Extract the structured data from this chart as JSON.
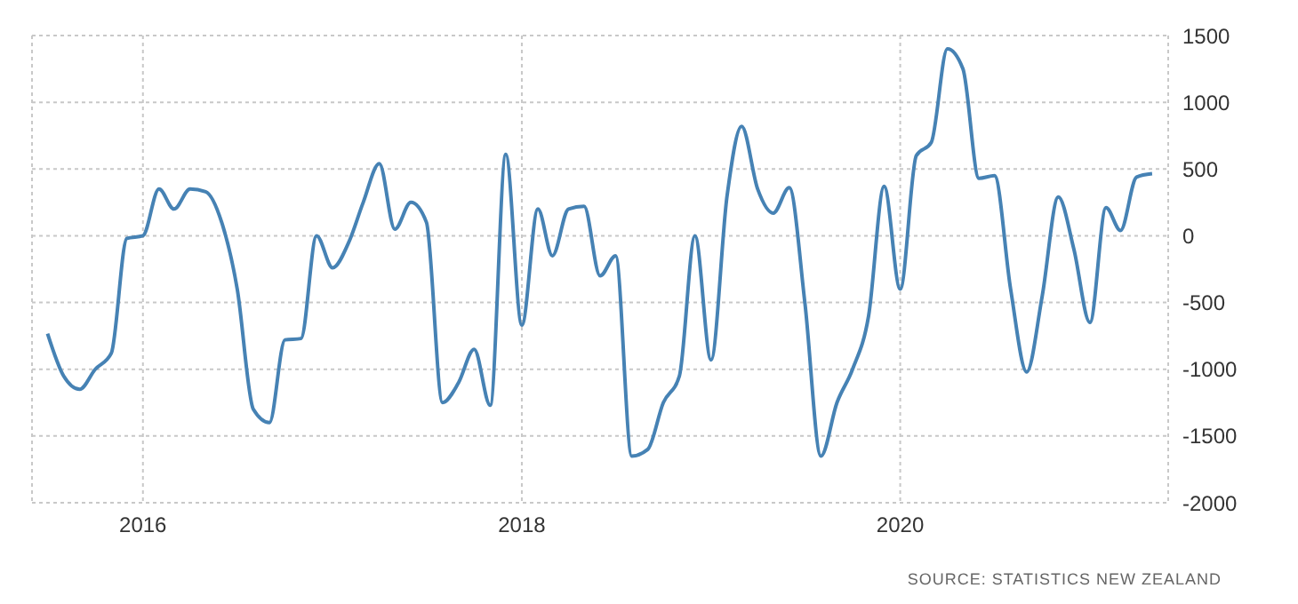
{
  "chart_data": {
    "type": "line",
    "x": [
      "2015-07",
      "2015-08",
      "2015-09",
      "2015-10",
      "2015-11",
      "2015-12",
      "2016-01",
      "2016-02",
      "2016-03",
      "2016-04",
      "2016-05",
      "2016-06",
      "2016-07",
      "2016-08",
      "2016-09",
      "2016-10",
      "2016-11",
      "2016-12",
      "2017-01",
      "2017-02",
      "2017-03",
      "2017-04",
      "2017-05",
      "2017-06",
      "2017-07",
      "2017-08",
      "2017-09",
      "2017-10",
      "2017-11",
      "2017-12",
      "2018-01",
      "2018-02",
      "2018-03",
      "2018-04",
      "2018-05",
      "2018-06",
      "2018-07",
      "2018-08",
      "2018-09",
      "2018-10",
      "2018-11",
      "2018-12",
      "2019-01",
      "2019-02",
      "2019-03",
      "2019-04",
      "2019-05",
      "2019-06",
      "2019-07",
      "2019-08",
      "2019-09",
      "2019-10",
      "2019-11",
      "2019-12",
      "2020-01",
      "2020-02",
      "2020-03",
      "2020-04",
      "2020-05",
      "2020-06",
      "2020-07",
      "2020-08",
      "2020-09",
      "2020-10",
      "2020-11",
      "2020-12",
      "2021-01",
      "2021-02",
      "2021-03",
      "2021-04",
      "2021-05"
    ],
    "series": [
      {
        "color": "#4682b4",
        "values": [
          -733,
          -1050,
          -1150,
          -1000,
          -880,
          -20,
          0,
          350,
          200,
          350,
          330,
          100,
          -400,
          -1300,
          -1400,
          -780,
          -770,
          0,
          -240,
          -50,
          250,
          540,
          50,
          250,
          100,
          -1250,
          -1100,
          -850,
          -1270,
          610,
          -670,
          200,
          -150,
          200,
          220,
          -300,
          -150,
          -1650,
          -1600,
          -1250,
          -1050,
          0,
          -930,
          300,
          820,
          350,
          170,
          360,
          -500,
          -1650,
          -1250,
          -1000,
          -600,
          370,
          -400,
          600,
          700,
          1400,
          1250,
          430,
          450,
          -400,
          -1020,
          -450,
          290,
          -100,
          -650,
          210,
          40,
          440,
          465
        ]
      }
    ],
    "xlim": [
      "2015-06",
      "2021-06"
    ],
    "xticks": [
      "2016",
      "2018",
      "2020"
    ],
    "ylim": [
      -2000,
      1500
    ],
    "yticks": [
      -2000,
      -1500,
      -1000,
      -500,
      0,
      500,
      1000,
      1500
    ],
    "grid": true,
    "marker": "none",
    "line_style": "solid",
    "annotations": [
      "SOURCE: STATISTICS NEW ZEALAND"
    ]
  }
}
